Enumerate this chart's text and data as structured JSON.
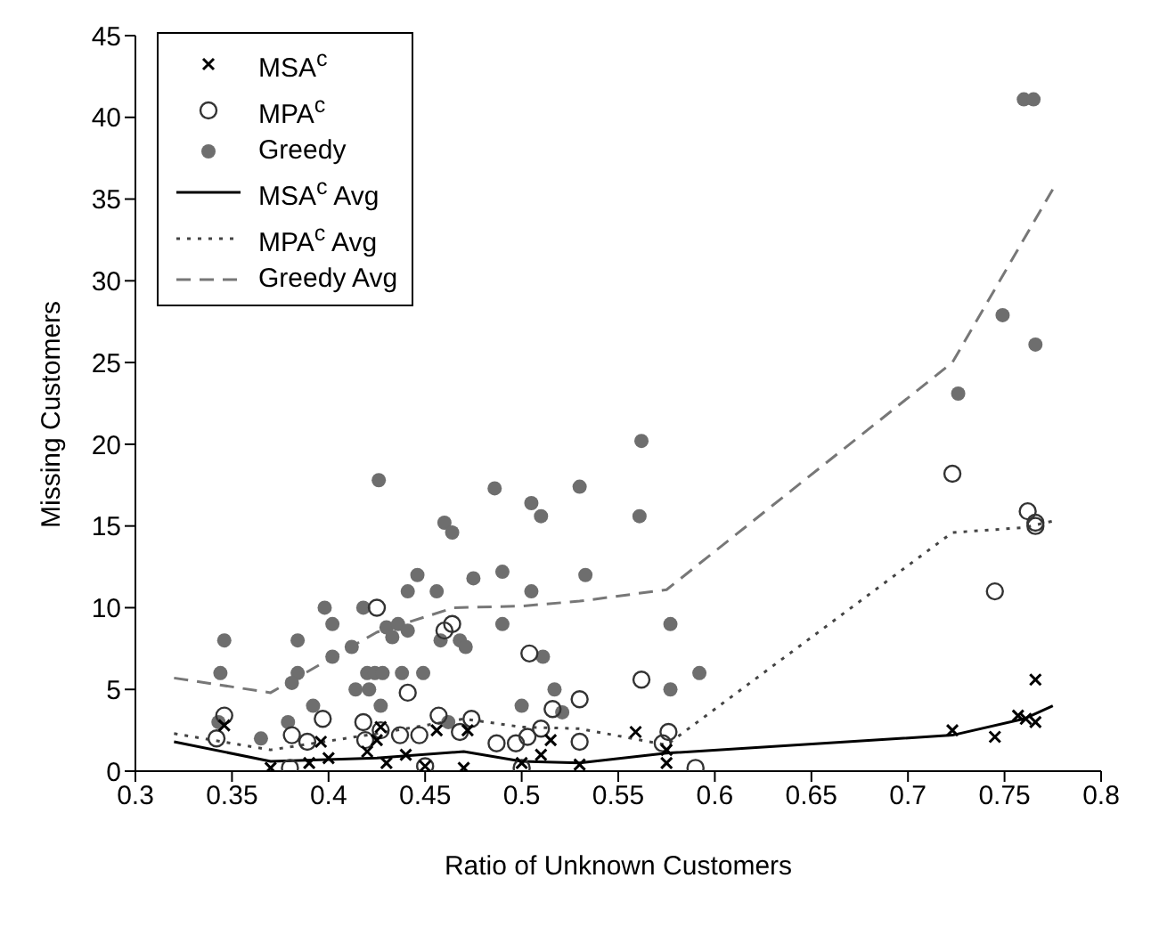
{
  "chart_data": {
    "type": "scatter",
    "xlabel": "Ratio of Unknown Customers",
    "ylabel": "Missing Customers",
    "xlim": [
      0.3,
      0.8
    ],
    "xticks": [
      0.3,
      0.35,
      0.4,
      0.45,
      0.5,
      0.55,
      0.6,
      0.65,
      0.7,
      0.75,
      0.8
    ],
    "ylim": [
      0,
      45
    ],
    "yticks": [
      0,
      5,
      10,
      15,
      20,
      25,
      30,
      35,
      40,
      45
    ],
    "grid": false,
    "legend": "top left",
    "series": [
      {
        "name": "MSA$^{c}$",
        "marker": "cross",
        "color": "#000000",
        "x": [
          0.346,
          0.427,
          0.456,
          0.472,
          0.559,
          0.425,
          0.396,
          0.515,
          0.37,
          0.39,
          0.4,
          0.42,
          0.43,
          0.44,
          0.45,
          0.47,
          0.5,
          0.51,
          0.53,
          0.575,
          0.575,
          0.723,
          0.745,
          0.757,
          0.766,
          0.761,
          0.766
        ],
        "values": [
          2.8,
          2.7,
          2.5,
          2.5,
          2.4,
          1.9,
          1.8,
          1.9,
          0.2,
          0.5,
          0.8,
          1.2,
          0.5,
          1.0,
          0.3,
          0.2,
          0.5,
          1.0,
          0.4,
          0.5,
          1.3,
          2.5,
          2.1,
          3.4,
          5.6,
          3.2,
          3.0
        ]
      },
      {
        "name": "MPA$^{c}$",
        "marker": "circle",
        "color": "#333333",
        "x": [
          0.425,
          0.46,
          0.464,
          0.441,
          0.346,
          0.397,
          0.457,
          0.474,
          0.418,
          0.381,
          0.419,
          0.427,
          0.437,
          0.447,
          0.468,
          0.342,
          0.504,
          0.516,
          0.53,
          0.562,
          0.51,
          0.576,
          0.389,
          0.487,
          0.497,
          0.503,
          0.53,
          0.573,
          0.38,
          0.45,
          0.5,
          0.59,
          0.723,
          0.745,
          0.762,
          0.766,
          0.766
        ],
        "values": [
          10.0,
          8.6,
          9.0,
          4.8,
          3.4,
          3.2,
          3.4,
          3.2,
          3.0,
          2.2,
          1.9,
          2.5,
          2.2,
          2.2,
          2.4,
          2.0,
          7.2,
          3.8,
          4.4,
          5.6,
          2.6,
          2.4,
          1.8,
          1.7,
          1.7,
          2.1,
          1.8,
          1.7,
          0.2,
          0.3,
          0.2,
          0.2,
          18.2,
          11.0,
          15.9,
          15.2,
          15.0
        ]
      },
      {
        "name": "Greedy",
        "color": "#6e6e6e",
        "x": [
          0.426,
          0.486,
          0.46,
          0.464,
          0.446,
          0.441,
          0.456,
          0.475,
          0.49,
          0.398,
          0.418,
          0.402,
          0.43,
          0.436,
          0.441,
          0.433,
          0.49,
          0.346,
          0.384,
          0.402,
          0.412,
          0.458,
          0.468,
          0.471,
          0.344,
          0.384,
          0.381,
          0.42,
          0.424,
          0.428,
          0.438,
          0.449,
          0.414,
          0.421,
          0.392,
          0.427,
          0.343,
          0.379,
          0.365,
          0.462,
          0.562,
          0.505,
          0.51,
          0.53,
          0.561,
          0.533,
          0.505,
          0.577,
          0.511,
          0.517,
          0.577,
          0.592,
          0.5,
          0.521,
          0.726,
          0.749,
          0.76,
          0.765,
          0.766
        ],
        "values": [
          17.8,
          17.3,
          15.2,
          14.6,
          12.0,
          11.0,
          11.0,
          11.8,
          12.2,
          10.0,
          10.0,
          9.0,
          8.8,
          9.0,
          8.6,
          8.2,
          9.0,
          8.0,
          8.0,
          7.0,
          7.6,
          8.0,
          8.0,
          7.6,
          6.0,
          6.0,
          5.4,
          6.0,
          6.0,
          6.0,
          6.0,
          6.0,
          5.0,
          5.0,
          4.0,
          4.0,
          3.0,
          3.0,
          2.0,
          3.0,
          20.2,
          16.4,
          15.6,
          17.4,
          15.6,
          12.0,
          11.0,
          9.0,
          7.0,
          5.0,
          5.0,
          6.0,
          4.0,
          3.6,
          23.1,
          27.9,
          41.1,
          41.1,
          26.1
        ]
      },
      {
        "name": "MSA$^{c}$ Avg",
        "type": "line",
        "line_style": "solid",
        "color": "#000000",
        "x": [
          0.32,
          0.37,
          0.425,
          0.47,
          0.5,
          0.53,
          0.575,
          0.723,
          0.76,
          0.775
        ],
        "values": [
          1.8,
          0.6,
          0.8,
          1.2,
          0.6,
          0.5,
          1.1,
          2.2,
          3.2,
          4.0
        ]
      },
      {
        "name": "MPA$^{c}$ Avg",
        "type": "line",
        "line_style": "dotted",
        "color": "#444444",
        "x": [
          0.32,
          0.37,
          0.425,
          0.47,
          0.5,
          0.53,
          0.575,
          0.723,
          0.76,
          0.775
        ],
        "values": [
          2.3,
          1.3,
          2.3,
          3.2,
          2.7,
          2.6,
          1.6,
          14.6,
          14.9,
          15.3
        ]
      },
      {
        "name": "Greedy Avg",
        "type": "line",
        "line_style": "dashed",
        "color": "#777777",
        "x": [
          0.32,
          0.37,
          0.425,
          0.465,
          0.5,
          0.53,
          0.575,
          0.723,
          0.775
        ],
        "values": [
          5.7,
          4.8,
          8.5,
          10.0,
          10.1,
          10.4,
          11.1,
          25.0,
          35.6
        ]
      }
    ]
  }
}
